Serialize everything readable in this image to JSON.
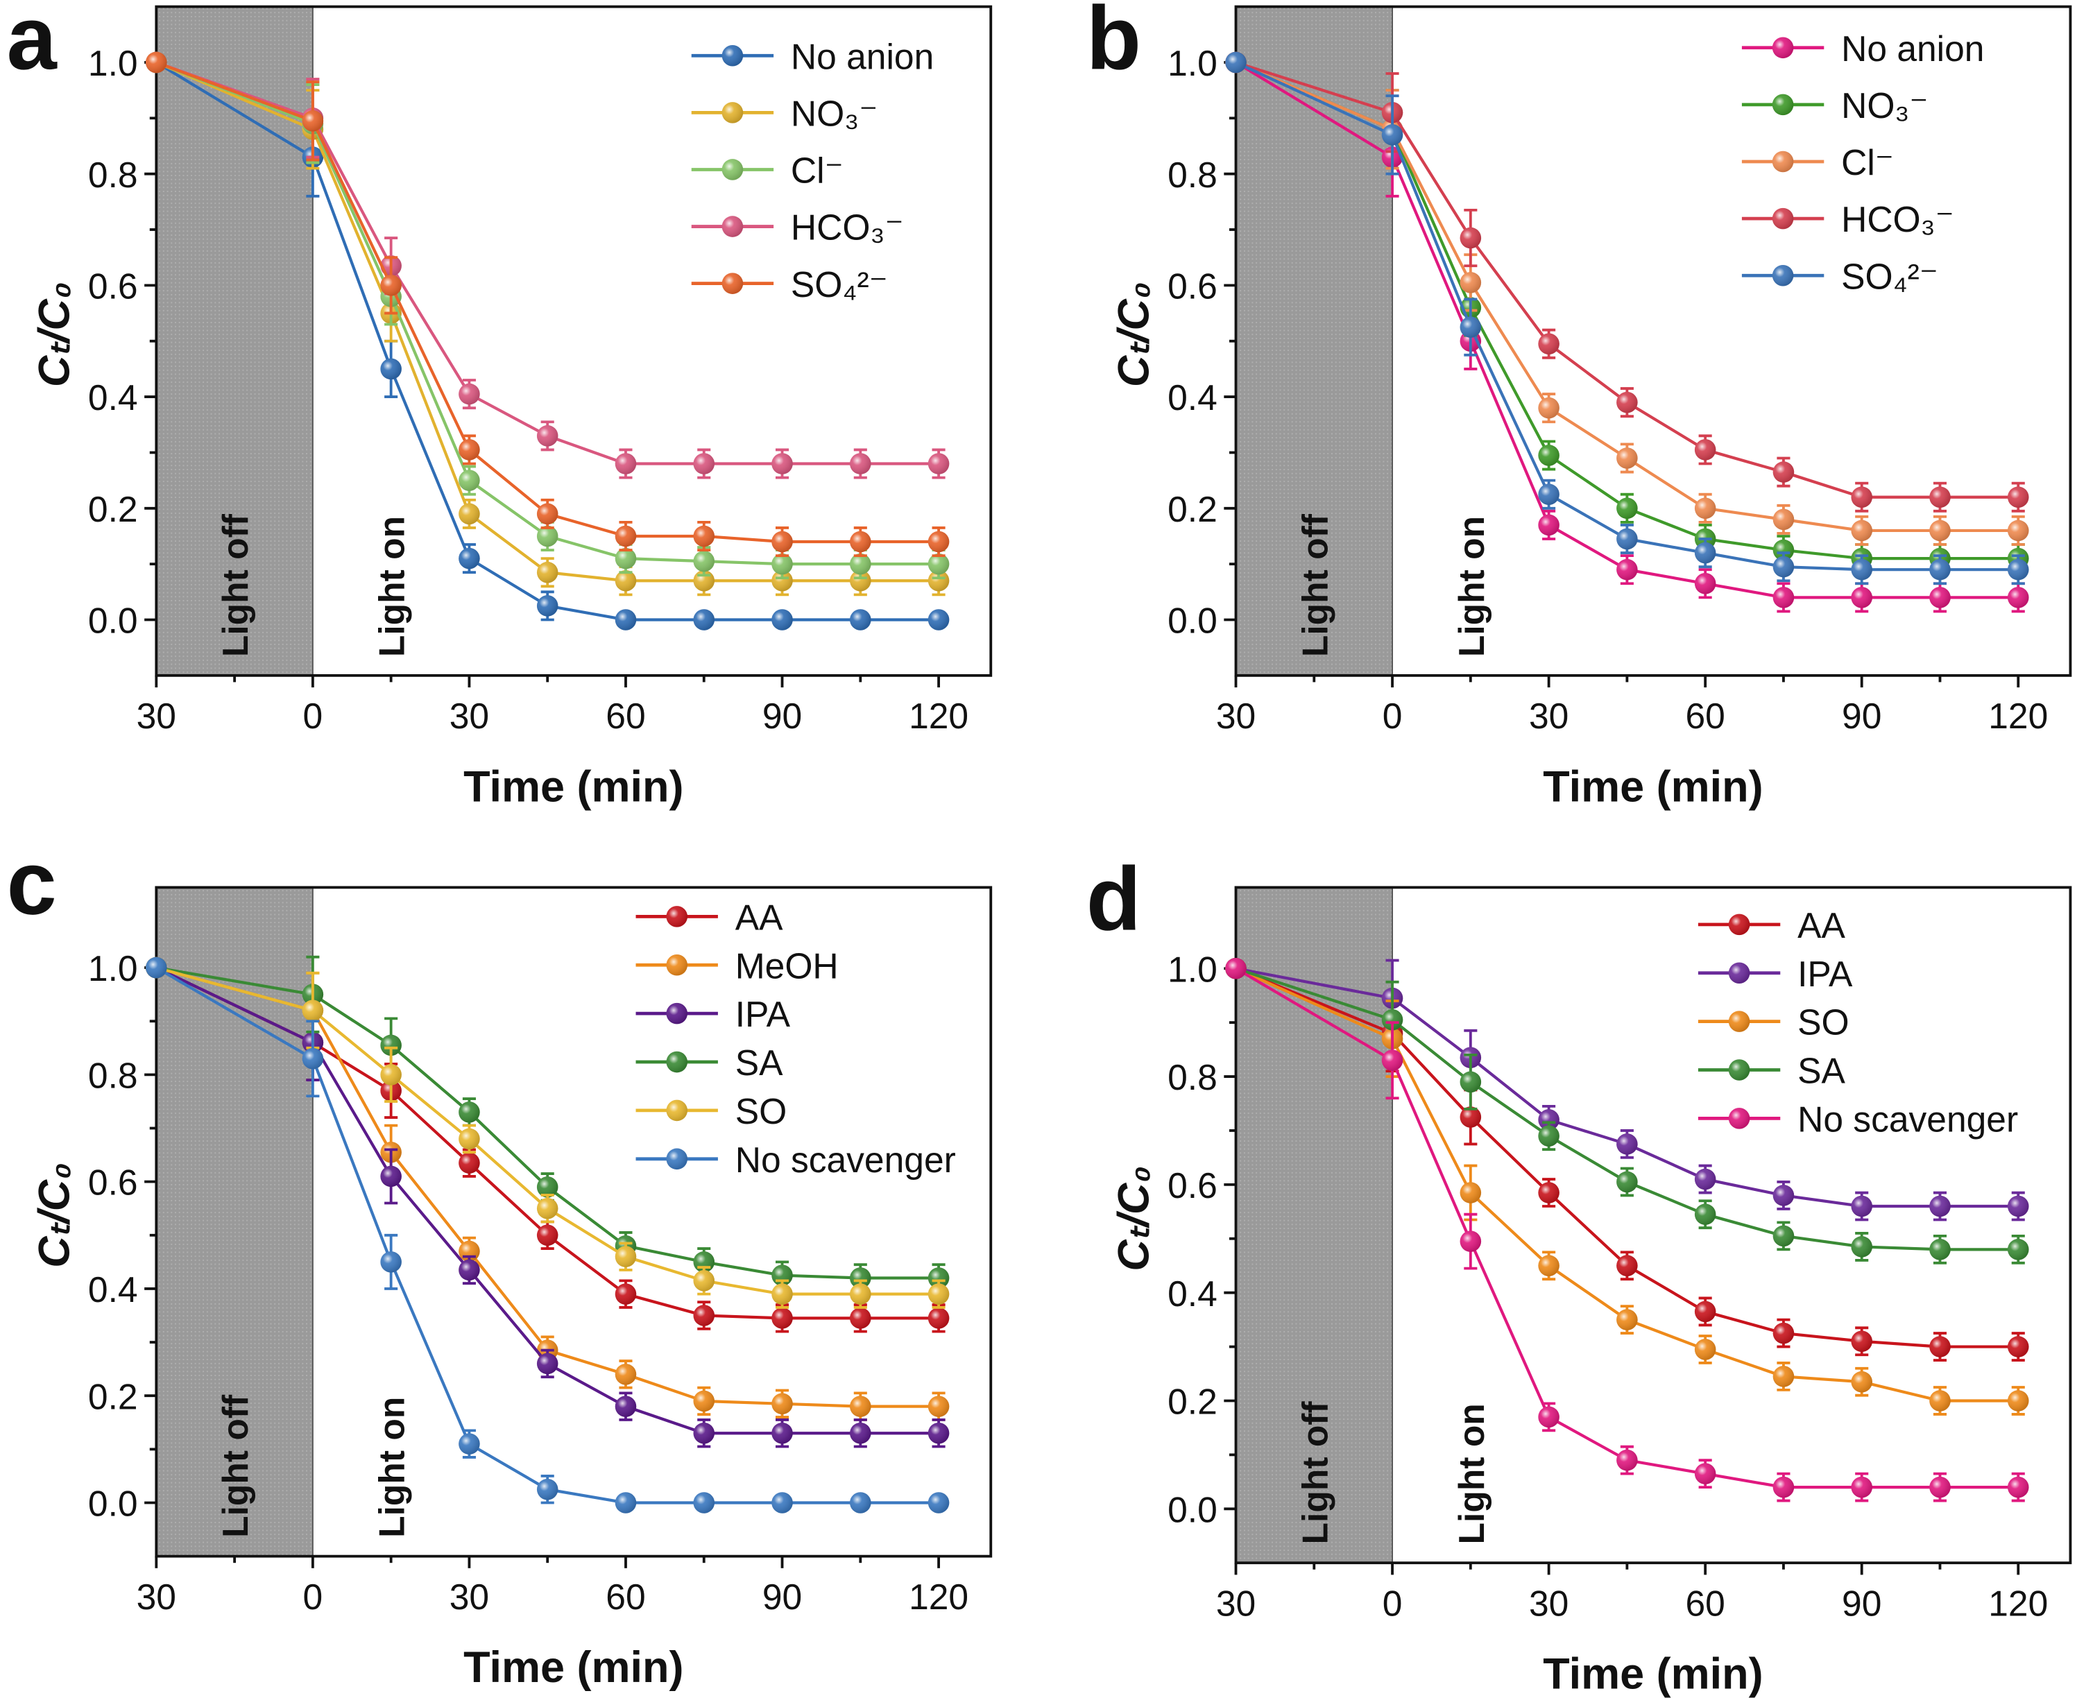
{
  "chart_data": [
    {
      "panel_label": "a",
      "type": "line",
      "xlabel": "Time (min)",
      "ylabel": "Cₜ/C₀",
      "x": [
        -30,
        0,
        15,
        30,
        45,
        60,
        75,
        90,
        105,
        120
      ],
      "x_tick_values": [
        -30,
        0,
        30,
        60,
        90,
        120
      ],
      "x_tick_labels": [
        "30",
        "0",
        "30",
        "60",
        "90",
        "120"
      ],
      "y_tick_labels": [
        "0.0",
        "0.2",
        "0.4",
        "0.6",
        "0.8",
        "1.0"
      ],
      "xlim": [
        -30,
        130
      ],
      "ylim": [
        -0.1,
        1.1
      ],
      "grid": false,
      "legend_position": "top-right",
      "shaded_region": {
        "x": [
          -30,
          0
        ],
        "label": "Light off"
      },
      "annotation": "Light on",
      "series": [
        {
          "name": "No anion",
          "color": "#2f6db5",
          "values": [
            1.0,
            0.83,
            0.45,
            0.11,
            0.025,
            0,
            0,
            0,
            0,
            0
          ]
        },
        {
          "name": "NO₃⁻",
          "color": "#e2b22e",
          "values": [
            1.0,
            0.88,
            0.55,
            0.19,
            0.085,
            0.07,
            0.07,
            0.07,
            0.07,
            0.07
          ]
        },
        {
          "name": "Cl⁻",
          "color": "#86c468",
          "values": [
            1.0,
            0.89,
            0.58,
            0.25,
            0.15,
            0.11,
            0.105,
            0.1,
            0.1,
            0.1
          ]
        },
        {
          "name": "HCO₃⁻",
          "color": "#d9577f",
          "values": [
            1.0,
            0.9,
            0.635,
            0.405,
            0.33,
            0.28,
            0.28,
            0.28,
            0.28,
            0.28
          ]
        },
        {
          "name": "SO₄²⁻",
          "color": "#e8632a",
          "values": [
            1.0,
            0.895,
            0.6,
            0.305,
            0.19,
            0.15,
            0.15,
            0.14,
            0.14,
            0.14
          ]
        }
      ]
    },
    {
      "panel_label": "b",
      "type": "line",
      "xlabel": "Time (min)",
      "ylabel": "Cₜ/C₀",
      "x": [
        -30,
        0,
        15,
        30,
        45,
        60,
        75,
        90,
        105,
        120
      ],
      "x_tick_values": [
        -30,
        0,
        30,
        60,
        90,
        120
      ],
      "x_tick_labels": [
        "30",
        "0",
        "30",
        "60",
        "90",
        "120"
      ],
      "y_tick_labels": [
        "0.0",
        "0.2",
        "0.4",
        "0.6",
        "0.8",
        "1.0"
      ],
      "xlim": [
        -30,
        130
      ],
      "ylim": [
        -0.1,
        1.1
      ],
      "grid": false,
      "legend_position": "top-right",
      "shaded_region": {
        "x": [
          -30,
          0
        ],
        "label": "Light off"
      },
      "annotation": "Light on",
      "series": [
        {
          "name": "No anion",
          "color": "#e0187f",
          "values": [
            1.0,
            0.83,
            0.5,
            0.17,
            0.09,
            0.065,
            0.04,
            0.04,
            0.04,
            0.04
          ]
        },
        {
          "name": "NO₃⁻",
          "color": "#3f9a2a",
          "values": [
            1.0,
            0.88,
            0.56,
            0.295,
            0.2,
            0.145,
            0.125,
            0.11,
            0.11,
            0.11
          ]
        },
        {
          "name": "Cl⁻",
          "color": "#ee8a50",
          "values": [
            1.0,
            0.88,
            0.605,
            0.38,
            0.29,
            0.2,
            0.18,
            0.16,
            0.16,
            0.16
          ]
        },
        {
          "name": "HCO₃⁻",
          "color": "#d43f4f",
          "values": [
            1.0,
            0.91,
            0.685,
            0.495,
            0.39,
            0.305,
            0.265,
            0.22,
            0.22,
            0.22
          ]
        },
        {
          "name": "SO₄²⁻",
          "color": "#3a73b8",
          "values": [
            1.0,
            0.87,
            0.525,
            0.225,
            0.145,
            0.12,
            0.095,
            0.09,
            0.09,
            0.09
          ]
        }
      ]
    },
    {
      "panel_label": "c",
      "type": "line",
      "xlabel": "Time (min)",
      "ylabel": "Cₜ/C₀",
      "x": [
        -30,
        0,
        15,
        30,
        45,
        60,
        75,
        90,
        105,
        120
      ],
      "x_tick_values": [
        -30,
        0,
        30,
        60,
        90,
        120
      ],
      "x_tick_labels": [
        "30",
        "0",
        "30",
        "60",
        "90",
        "120"
      ],
      "y_tick_labels": [
        "0.0",
        "0.2",
        "0.4",
        "0.6",
        "0.8",
        "1.0"
      ],
      "xlim": [
        -30,
        130
      ],
      "ylim": [
        -0.1,
        1.15
      ],
      "grid": false,
      "legend_position": "top-right",
      "shaded_region": {
        "x": [
          -30,
          0
        ],
        "label": "Light off"
      },
      "annotation": "Light on",
      "series": [
        {
          "name": "AA",
          "color": "#c8141c",
          "values": [
            1.0,
            0.86,
            0.77,
            0.635,
            0.5,
            0.39,
            0.35,
            0.345,
            0.345,
            0.345
          ]
        },
        {
          "name": "MeOH",
          "color": "#ee8a1a",
          "values": [
            1.0,
            0.92,
            0.655,
            0.47,
            0.285,
            0.24,
            0.19,
            0.185,
            0.18,
            0.18
          ]
        },
        {
          "name": "IPA",
          "color": "#5a1a8a",
          "values": [
            1.0,
            0.86,
            0.61,
            0.435,
            0.26,
            0.18,
            0.13,
            0.13,
            0.13,
            0.13
          ]
        },
        {
          "name": "SA",
          "color": "#3a8a35",
          "values": [
            1.0,
            0.95,
            0.855,
            0.73,
            0.59,
            0.48,
            0.45,
            0.425,
            0.42,
            0.42
          ]
        },
        {
          "name": "SO",
          "color": "#e8b830",
          "values": [
            1.0,
            0.92,
            0.8,
            0.68,
            0.55,
            0.46,
            0.415,
            0.39,
            0.39,
            0.39
          ]
        },
        {
          "name": "No scavenger",
          "color": "#3a78c0",
          "values": [
            1.0,
            0.83,
            0.45,
            0.11,
            0.025,
            0,
            0,
            0,
            0,
            0
          ]
        }
      ]
    },
    {
      "panel_label": "d",
      "type": "line",
      "xlabel": "Time (min)",
      "ylabel": "Cₜ/C₀",
      "x": [
        -30,
        0,
        15,
        30,
        45,
        60,
        75,
        90,
        105,
        120
      ],
      "x_tick_values": [
        -30,
        0,
        30,
        60,
        90,
        120
      ],
      "x_tick_labels": [
        "30",
        "0",
        "30",
        "60",
        "90",
        "120"
      ],
      "y_tick_labels": [
        "0.0",
        "0.2",
        "0.4",
        "0.6",
        "0.8",
        "1.0"
      ],
      "xlim": [
        -30,
        130
      ],
      "ylim": [
        -0.1,
        1.15
      ],
      "grid": false,
      "legend_position": "top-right",
      "shaded_region": {
        "x": [
          -30,
          0
        ],
        "label": "Light off"
      },
      "annotation": "Light on",
      "series": [
        {
          "name": "AA",
          "color": "#c8141c",
          "values": [
            1.0,
            0.88,
            0.725,
            0.585,
            0.45,
            0.365,
            0.325,
            0.31,
            0.3,
            0.3
          ]
        },
        {
          "name": "IPA",
          "color": "#6a2a9a",
          "values": [
            1.0,
            0.945,
            0.835,
            0.72,
            0.675,
            0.61,
            0.58,
            0.56,
            0.56,
            0.56
          ]
        },
        {
          "name": "SO",
          "color": "#ee8a1a",
          "values": [
            1.0,
            0.87,
            0.585,
            0.45,
            0.35,
            0.295,
            0.245,
            0.235,
            0.2,
            0.2
          ]
        },
        {
          "name": "SA",
          "color": "#3a8a35",
          "values": [
            1.0,
            0.905,
            0.79,
            0.69,
            0.605,
            0.545,
            0.505,
            0.485,
            0.48,
            0.48
          ]
        },
        {
          "name": "No scavenger",
          "color": "#e0187f",
          "values": [
            1.0,
            0.83,
            0.495,
            0.17,
            0.09,
            0.065,
            0.04,
            0.04,
            0.04,
            0.04
          ]
        }
      ]
    }
  ]
}
